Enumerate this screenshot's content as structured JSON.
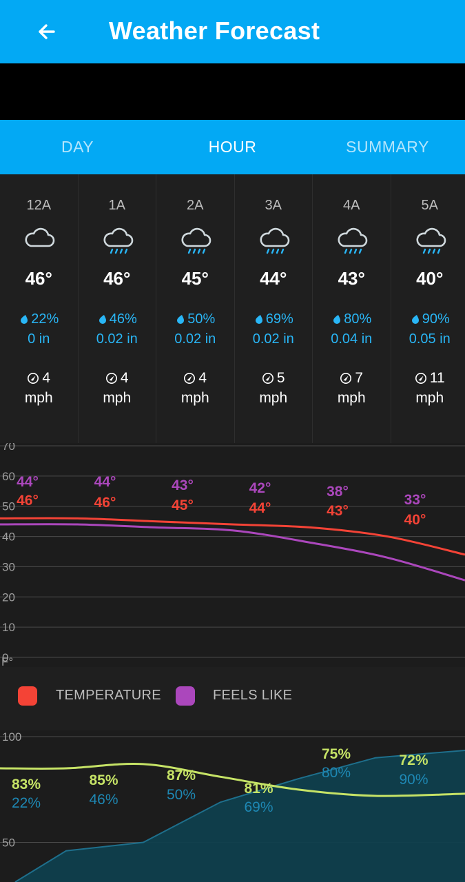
{
  "app": {
    "title": "Weather Forecast"
  },
  "tabs": [
    {
      "label": "DAY",
      "active": false
    },
    {
      "label": "HOUR",
      "active": true
    },
    {
      "label": "SUMMARY",
      "active": false
    }
  ],
  "hours": [
    {
      "time": "12A",
      "icon": "cloud-icon",
      "temp": "46°",
      "precip": "22%",
      "amount": "0 in",
      "wind": "4",
      "wind_unit": "mph"
    },
    {
      "time": "1A",
      "icon": "rain-cloud-icon",
      "temp": "46°",
      "precip": "46%",
      "amount": "0.02 in",
      "wind": "4",
      "wind_unit": "mph"
    },
    {
      "time": "2A",
      "icon": "rain-cloud-icon",
      "temp": "45°",
      "precip": "50%",
      "amount": "0.02 in",
      "wind": "4",
      "wind_unit": "mph"
    },
    {
      "time": "3A",
      "icon": "rain-cloud-icon",
      "temp": "44°",
      "precip": "69%",
      "amount": "0.02 in",
      "wind": "5",
      "wind_unit": "mph"
    },
    {
      "time": "4A",
      "icon": "rain-cloud-icon",
      "temp": "43°",
      "precip": "80%",
      "amount": "0.04 in",
      "wind": "7",
      "wind_unit": "mph"
    },
    {
      "time": "5A",
      "icon": "rain-cloud-icon",
      "temp": "40°",
      "precip": "90%",
      "amount": "0.05 in",
      "wind": "11",
      "wind_unit": "mph"
    }
  ],
  "colors": {
    "accent": "#03a9f4",
    "temperature": "#f44336",
    "feels_like": "#ab47bc",
    "humidity": "#c6e366",
    "precip": "#1e88b4"
  },
  "legend": {
    "temperature": "TEMPERATURE",
    "feels_like": "FEELS LIKE"
  },
  "chart_data": [
    {
      "type": "line",
      "yunit": "F°",
      "ylim": [
        0,
        70
      ],
      "yticks": [
        "0",
        "10",
        "20",
        "30",
        "40",
        "50",
        "60",
        "70"
      ],
      "x": [
        "12A",
        "1A",
        "2A",
        "3A",
        "4A",
        "5A"
      ],
      "series": [
        {
          "name": "TEMPERATURE",
          "values": [
            46,
            46,
            45,
            44,
            43,
            40
          ],
          "labels": [
            "46°",
            "46°",
            "45°",
            "44°",
            "43°",
            "40°"
          ]
        },
        {
          "name": "FEELS LIKE",
          "values": [
            44,
            44,
            43,
            42,
            38,
            33
          ],
          "labels": [
            "44°",
            "44°",
            "43°",
            "42°",
            "38°",
            "33°"
          ]
        }
      ],
      "grid": true,
      "legend": "bottom"
    },
    {
      "type": "area",
      "ylim": [
        0,
        100
      ],
      "yticks": [
        "50",
        "100"
      ],
      "x": [
        "12A",
        "1A",
        "2A",
        "3A",
        "4A",
        "5A"
      ],
      "series": [
        {
          "values": [
            83,
            85,
            87,
            81,
            75,
            72
          ],
          "labels": [
            "83%",
            "85%",
            "87%",
            "81%",
            "75%",
            "72%"
          ]
        },
        {
          "values": [
            22,
            46,
            50,
            69,
            80,
            90
          ],
          "labels": [
            "22%",
            "46%",
            "50%",
            "69%",
            "80%",
            "90%"
          ]
        }
      ]
    }
  ]
}
